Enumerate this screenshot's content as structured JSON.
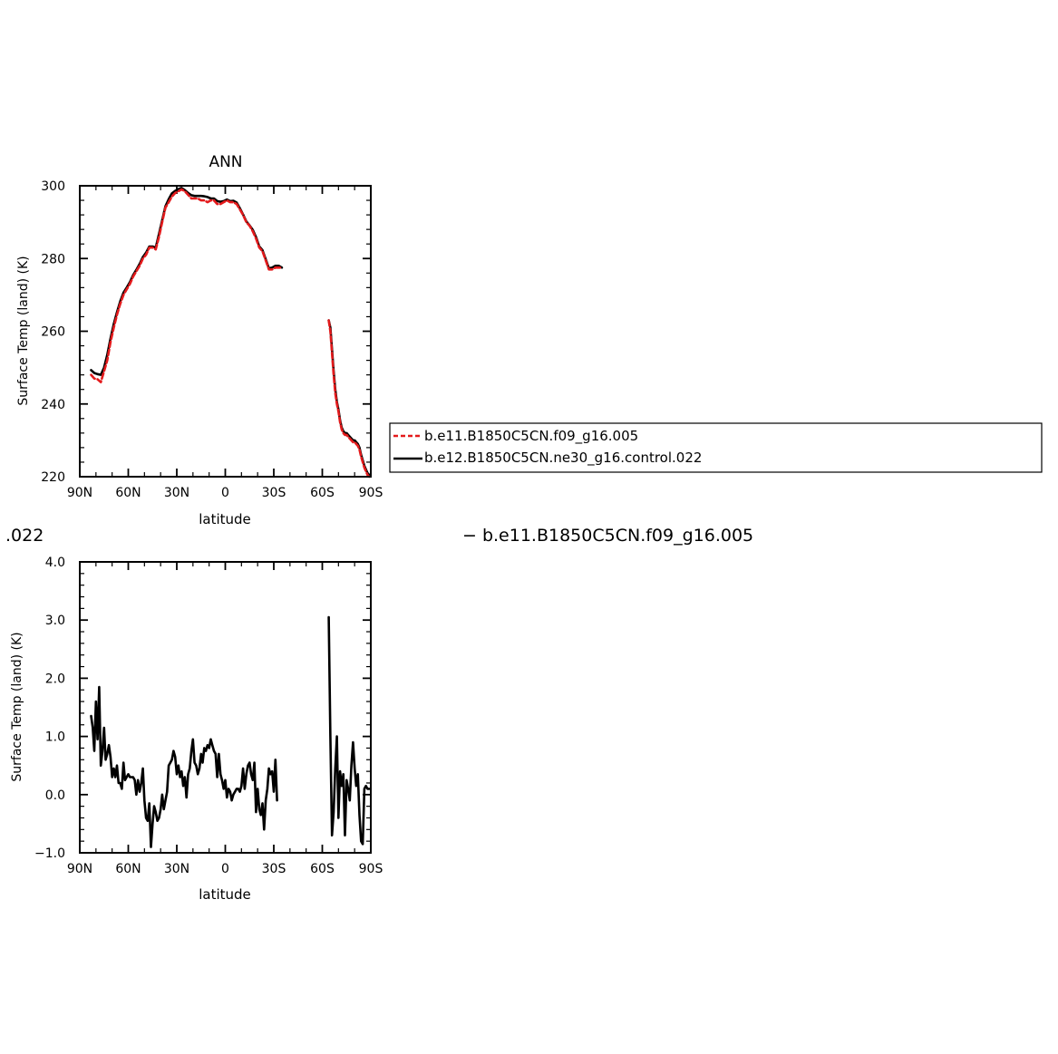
{
  "caption": {
    "left_fragment": ".022",
    "right_fragment": "− b.e11.B1850C5CN.f09_g16.005"
  },
  "legend": {
    "entries": [
      {
        "label": "b.e11.B1850C5CN.f09_g16.005",
        "color": "#e41a1c",
        "dash": true
      },
      {
        "label": "b.e12.B1850C5CN.ne30_g16.control.022",
        "color": "#000000",
        "dash": false
      }
    ]
  },
  "chart_data": [
    {
      "type": "line",
      "title": "ANN",
      "xlabel": "latitude",
      "ylabel": "Surface Temp (land) (K)",
      "xlim": [
        90,
        -90
      ],
      "ylim": [
        220,
        300
      ],
      "x_tick_values": [
        90,
        60,
        30,
        0,
        -30,
        -60,
        -90
      ],
      "x_tick_labels": [
        "90N",
        "60N",
        "30N",
        "0",
        "30S",
        "60S",
        "90S"
      ],
      "y_tick_values": [
        220,
        240,
        260,
        280,
        300
      ],
      "y_tick_labels": [
        "220",
        "240",
        "260",
        "280",
        "300"
      ],
      "series": [
        {
          "name": "b.e11.B1850C5CN.f09_g16.005",
          "color": "#e41a1c",
          "dash": true,
          "segments": [
            {
              "x": [
                83,
                81,
                79,
                77,
                75,
                73,
                71,
                69,
                67,
                65,
                63,
                61,
                59,
                57,
                55,
                53,
                51,
                49,
                47,
                45,
                43,
                41,
                39,
                37,
                35,
                33,
                31,
                29,
                27,
                25,
                23,
                21,
                19,
                17,
                15,
                13,
                11,
                9,
                7,
                5,
                3,
                1,
                -1,
                -3,
                -5,
                -7,
                -9,
                -11,
                -13,
                -15,
                -17,
                -19,
                -21,
                -23,
                -25,
                -27,
                -29,
                -31,
                -33,
                -35,
                -37,
                -39,
                -41,
                -43,
                -45,
                -47,
                -49,
                -51,
                -53,
                -55
              ],
              "y": [
                248,
                247,
                246.8,
                246,
                249,
                252,
                257,
                261,
                264.5,
                267.5,
                270,
                271.5,
                273,
                275,
                276.5,
                278,
                280,
                281,
                283,
                283,
                282.5,
                286,
                290,
                294,
                295.5,
                297,
                298,
                298.5,
                299,
                298.5,
                297.5,
                296.5,
                296.5,
                296.5,
                296,
                296,
                295.5,
                296,
                296,
                295,
                295,
                295.5,
                296,
                295.5,
                295.5,
                295,
                293.5,
                292,
                290,
                289,
                287.5,
                285.5,
                283,
                282,
                279.5,
                277,
                277,
                277.5,
                277.5,
                277.5,
                null,
                null,
                null,
                null,
                null,
                null,
                null,
                null,
                null,
                null
              ]
            },
            {
              "x": [
                -64,
                -65,
                -66,
                -67,
                -68,
                -69,
                -70,
                -71,
                -72,
                -73,
                -74,
                -75,
                -76,
                -77,
                -78,
                -79,
                -80,
                -81,
                -82,
                -83,
                -84,
                -85,
                -86,
                -87,
                -88,
                -89
              ],
              "y": [
                263,
                260,
                254,
                248,
                243,
                240,
                238,
                235,
                233,
                232,
                231.5,
                231.5,
                231,
                230.5,
                230,
                229.5,
                229.5,
                229,
                228.5,
                227.5,
                225.5,
                224,
                222.5,
                221.5,
                220.5,
                220
              ]
            }
          ]
        },
        {
          "name": "b.e12.B1850C5CN.ne30_g16.control.022",
          "color": "#000000",
          "dash": false,
          "segments": [
            {
              "x": [
                83,
                81,
                79,
                77,
                75,
                73,
                71,
                69,
                67,
                65,
                63,
                61,
                59,
                57,
                55,
                53,
                51,
                49,
                47,
                45,
                43,
                41,
                39,
                37,
                35,
                33,
                31,
                29,
                27,
                25,
                23,
                21,
                19,
                17,
                15,
                13,
                11,
                9,
                7,
                5,
                3,
                1,
                -1,
                -3,
                -5,
                -7,
                -9,
                -11,
                -13,
                -15,
                -17,
                -19,
                -21,
                -23,
                -25,
                -27,
                -29,
                -31,
                -33,
                -35,
                -37,
                -39,
                -41,
                -43,
                -45,
                -47,
                -49,
                -51,
                -53,
                -55
              ],
              "y": [
                249.3,
                248.5,
                248.2,
                248,
                250,
                253.5,
                258,
                262,
                265.2,
                268.2,
                270.6,
                272,
                273.5,
                275.4,
                276.9,
                278.5,
                280.4,
                281.6,
                283.3,
                283.3,
                283,
                286.8,
                290.5,
                294.4,
                296.3,
                297.9,
                298.6,
                299.1,
                299.4,
                298.8,
                298,
                297.4,
                297.2,
                297.2,
                297.2,
                297.1,
                296.9,
                296.5,
                296.5,
                295.8,
                295.6,
                295.8,
                296.2,
                295.8,
                295.9,
                295.4,
                293.8,
                292.1,
                290.2,
                289.1,
                287.9,
                285.9,
                283.3,
                282.3,
                279.8,
                277.3,
                277.5,
                278,
                278,
                277.5,
                null,
                null,
                null,
                null,
                null,
                null,
                null,
                null,
                null,
                null
              ]
            },
            {
              "x": [
                -64,
                -65,
                -66,
                -67,
                -68,
                -69,
                -70,
                -71,
                -72,
                -73,
                -74,
                -75,
                -76,
                -77,
                -78,
                -79,
                -80,
                -81,
                -82,
                -83,
                -84,
                -85,
                -86,
                -87,
                -88,
                -89
              ],
              "y": [
                263,
                261,
                255,
                249,
                244,
                240.5,
                238.5,
                235.5,
                233.5,
                232.5,
                232,
                232,
                231.5,
                231,
                230.5,
                230,
                230,
                229.5,
                229,
                228,
                226,
                224.5,
                223,
                222,
                221,
                220.5
              ]
            }
          ]
        }
      ]
    },
    {
      "type": "line",
      "title": "",
      "xlabel": "latitude",
      "ylabel": "Surface Temp (land) (K)",
      "xlim": [
        90,
        -90
      ],
      "ylim": [
        -1.0,
        4.0
      ],
      "x_tick_values": [
        90,
        60,
        30,
        0,
        -30,
        -60,
        -90
      ],
      "x_tick_labels": [
        "90N",
        "60N",
        "30N",
        "0",
        "30S",
        "60S",
        "90S"
      ],
      "y_tick_values": [
        -1.0,
        0.0,
        1.0,
        2.0,
        3.0,
        4.0
      ],
      "y_tick_labels": [
        "−1.0",
        "0.0",
        "1.0",
        "2.0",
        "3.0",
        "4.0"
      ],
      "series": [
        {
          "name": "",
          "color": "#000000",
          "dash": false,
          "segments": [
            {
              "x": [
                83,
                82,
                81,
                80,
                79,
                78,
                77,
                76,
                75,
                74,
                73,
                72,
                71,
                70,
                69,
                68,
                67,
                66,
                65,
                64,
                63,
                62,
                61,
                60,
                59,
                58,
                57,
                56,
                55,
                54,
                53,
                52,
                51,
                50,
                49,
                48,
                47,
                46,
                45,
                44,
                43,
                42,
                41,
                40,
                39,
                38,
                37,
                36,
                35,
                34,
                33,
                32,
                31,
                30,
                29,
                28,
                27,
                26,
                25,
                24,
                23,
                22,
                21,
                20,
                19,
                18,
                17,
                16,
                15,
                14,
                13,
                12,
                11,
                10,
                9,
                8,
                7,
                6,
                5,
                4,
                3,
                2,
                1,
                0,
                -1,
                -2,
                -3,
                -4,
                -5,
                -6,
                -7,
                -8,
                -9,
                -10,
                -11,
                -12,
                -13,
                -14,
                -15,
                -16,
                -17,
                -18,
                -19,
                -20,
                -21,
                -22,
                -23,
                -24,
                -25,
                -26,
                -27,
                -28,
                -29,
                -30,
                -31,
                -32,
                -33,
                -34,
                -35,
                -36,
                -37,
                -38,
                -39,
                -40,
                -41,
                -42,
                -43,
                -44,
                -45,
                -46,
                -47,
                -48,
                -49,
                -50,
                -51,
                -52,
                -53,
                -54,
                -55
              ],
              "y": [
                1.35,
                1.15,
                0.75,
                1.6,
                0.95,
                1.85,
                0.5,
                0.75,
                1.15,
                0.6,
                0.7,
                0.85,
                0.65,
                0.3,
                0.45,
                0.3,
                0.5,
                0.2,
                0.2,
                0.1,
                0.55,
                0.25,
                0.3,
                0.35,
                0.3,
                0.3,
                0.3,
                0.25,
                0.0,
                0.25,
                0.05,
                0.2,
                0.45,
                -0.1,
                -0.4,
                -0.45,
                -0.15,
                -0.9,
                -0.5,
                -0.2,
                -0.3,
                -0.45,
                -0.4,
                -0.25,
                0.0,
                -0.25,
                -0.1,
                0.05,
                0.5,
                0.55,
                0.6,
                0.75,
                0.65,
                0.35,
                0.5,
                0.3,
                0.4,
                0.15,
                0.3,
                -0.05,
                0.35,
                0.45,
                0.75,
                0.95,
                0.55,
                0.5,
                0.35,
                0.45,
                0.7,
                0.55,
                0.8,
                0.75,
                0.85,
                0.8,
                0.95,
                0.85,
                0.75,
                0.7,
                0.3,
                0.7,
                0.35,
                0.25,
                0.1,
                0.25,
                -0.05,
                0.1,
                0.05,
                -0.1,
                0.0,
                0.05,
                0.1,
                0.1,
                0.05,
                0.15,
                0.45,
                0.1,
                0.35,
                0.5,
                0.55,
                0.35,
                0.25,
                0.55,
                -0.3,
                0.1,
                -0.25,
                -0.35,
                -0.15,
                -0.6,
                -0.1,
                0.1,
                0.45,
                0.35,
                0.4,
                0.05,
                0.6,
                -0.1,
                null,
                null,
                null,
                null,
                null,
                null,
                null,
                null,
                null,
                null,
                null,
                null,
                null,
                null,
                null,
                null,
                null,
                null,
                null,
                null,
                null,
                null,
                null
              ]
            },
            {
              "x": [
                -64,
                -65,
                -66,
                -67,
                -68,
                -69,
                -70,
                -71,
                -72,
                -73,
                -74,
                -75,
                -76,
                -77,
                -78,
                -79,
                -80,
                -81,
                -82,
                -83,
                -84,
                -85,
                -86,
                -87,
                -88,
                -89
              ],
              "y": [
                3.05,
                1.0,
                -0.7,
                -0.3,
                0.45,
                1.0,
                -0.4,
                0.4,
                0.15,
                0.35,
                -0.7,
                0.25,
                0.1,
                -0.1,
                0.5,
                0.9,
                0.45,
                0.15,
                0.35,
                -0.35,
                -0.8,
                -0.85,
                0.1,
                0.15,
                0.1,
                0.1
              ]
            }
          ]
        }
      ]
    }
  ]
}
